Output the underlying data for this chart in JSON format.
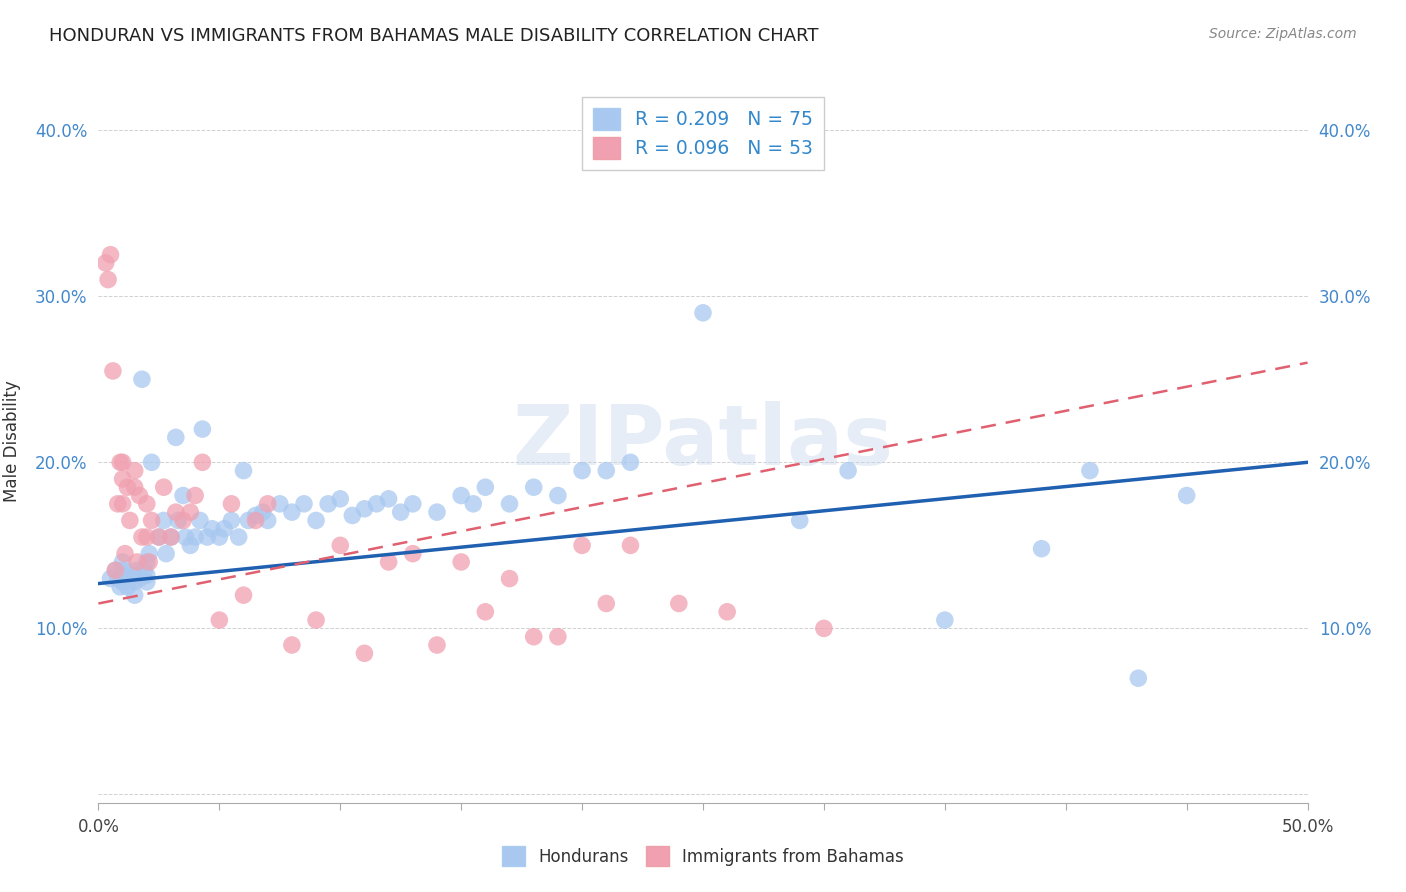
{
  "title": "HONDURAN VS IMMIGRANTS FROM BAHAMAS MALE DISABILITY CORRELATION CHART",
  "source": "Source: ZipAtlas.com",
  "xlabel": "",
  "ylabel": "Male Disability",
  "xlim": [
    0.0,
    0.5
  ],
  "ylim": [
    -0.005,
    0.43
  ],
  "xticks": [
    0.0,
    0.05,
    0.1,
    0.15,
    0.2,
    0.25,
    0.3,
    0.35,
    0.4,
    0.45,
    0.5
  ],
  "yticks": [
    0.0,
    0.1,
    0.2,
    0.3,
    0.4
  ],
  "ytick_labels": [
    "",
    "10.0%",
    "20.0%",
    "30.0%",
    "40.0%"
  ],
  "xtick_labels": [
    "0.0%",
    "",
    "",
    "",
    "",
    "",
    "",
    "",
    "",
    "",
    "50.0%"
  ],
  "blue_R": 0.209,
  "blue_N": 75,
  "pink_R": 0.096,
  "pink_N": 53,
  "blue_color": "#a8c8f0",
  "pink_color": "#f0a0b0",
  "blue_line_color": "#2060b0",
  "pink_line_color": "#e06070",
  "watermark": "ZIPatlas",
  "blue_line_x0": 0.0,
  "blue_line_y0": 0.127,
  "blue_line_x1": 0.5,
  "blue_line_y1": 0.2,
  "pink_line_x0": 0.0,
  "pink_line_y0": 0.115,
  "pink_line_x1": 0.5,
  "pink_line_y1": 0.26,
  "blue_x": [
    0.005,
    0.007,
    0.008,
    0.009,
    0.01,
    0.01,
    0.01,
    0.01,
    0.012,
    0.013,
    0.015,
    0.015,
    0.015,
    0.016,
    0.017,
    0.018,
    0.019,
    0.02,
    0.02,
    0.02,
    0.021,
    0.022,
    0.025,
    0.027,
    0.028,
    0.03,
    0.032,
    0.033,
    0.035,
    0.036,
    0.038,
    0.04,
    0.042,
    0.043,
    0.045,
    0.047,
    0.05,
    0.052,
    0.055,
    0.058,
    0.06,
    0.062,
    0.065,
    0.068,
    0.07,
    0.075,
    0.08,
    0.085,
    0.09,
    0.095,
    0.1,
    0.105,
    0.11,
    0.115,
    0.12,
    0.125,
    0.13,
    0.14,
    0.15,
    0.155,
    0.16,
    0.17,
    0.18,
    0.19,
    0.2,
    0.21,
    0.22,
    0.25,
    0.29,
    0.31,
    0.35,
    0.39,
    0.41,
    0.43,
    0.45
  ],
  "blue_y": [
    0.13,
    0.135,
    0.13,
    0.125,
    0.128,
    0.132,
    0.135,
    0.14,
    0.125,
    0.13,
    0.128,
    0.132,
    0.12,
    0.135,
    0.13,
    0.25,
    0.135,
    0.128,
    0.132,
    0.14,
    0.145,
    0.2,
    0.155,
    0.165,
    0.145,
    0.155,
    0.215,
    0.165,
    0.18,
    0.155,
    0.15,
    0.155,
    0.165,
    0.22,
    0.155,
    0.16,
    0.155,
    0.16,
    0.165,
    0.155,
    0.195,
    0.165,
    0.168,
    0.17,
    0.165,
    0.175,
    0.17,
    0.175,
    0.165,
    0.175,
    0.178,
    0.168,
    0.172,
    0.175,
    0.178,
    0.17,
    0.175,
    0.17,
    0.18,
    0.175,
    0.185,
    0.175,
    0.185,
    0.18,
    0.195,
    0.195,
    0.2,
    0.29,
    0.165,
    0.195,
    0.105,
    0.148,
    0.195,
    0.07,
    0.18
  ],
  "pink_x": [
    0.003,
    0.004,
    0.005,
    0.006,
    0.007,
    0.008,
    0.009,
    0.01,
    0.01,
    0.01,
    0.011,
    0.012,
    0.013,
    0.015,
    0.015,
    0.016,
    0.017,
    0.018,
    0.02,
    0.02,
    0.021,
    0.022,
    0.025,
    0.027,
    0.03,
    0.032,
    0.035,
    0.038,
    0.04,
    0.043,
    0.05,
    0.055,
    0.06,
    0.065,
    0.07,
    0.08,
    0.09,
    0.1,
    0.11,
    0.12,
    0.13,
    0.14,
    0.15,
    0.16,
    0.17,
    0.18,
    0.19,
    0.2,
    0.21,
    0.22,
    0.24,
    0.26,
    0.3
  ],
  "pink_y": [
    0.32,
    0.31,
    0.325,
    0.255,
    0.135,
    0.175,
    0.2,
    0.175,
    0.19,
    0.2,
    0.145,
    0.185,
    0.165,
    0.185,
    0.195,
    0.14,
    0.18,
    0.155,
    0.155,
    0.175,
    0.14,
    0.165,
    0.155,
    0.185,
    0.155,
    0.17,
    0.165,
    0.17,
    0.18,
    0.2,
    0.105,
    0.175,
    0.12,
    0.165,
    0.175,
    0.09,
    0.105,
    0.15,
    0.085,
    0.14,
    0.145,
    0.09,
    0.14,
    0.11,
    0.13,
    0.095,
    0.095,
    0.15,
    0.115,
    0.15,
    0.115,
    0.11,
    0.1
  ]
}
